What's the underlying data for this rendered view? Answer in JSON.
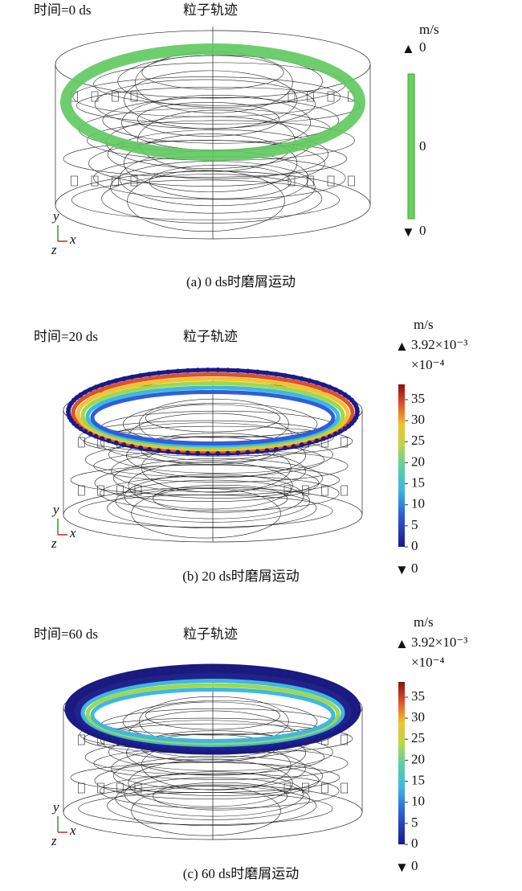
{
  "panels": [
    {
      "time_label": "时间=0 ds",
      "plot_title": "粒子轨迹",
      "unit": "m/s",
      "max_label": "0",
      "mid_label": "0",
      "min_label": "0",
      "axis_y": "y",
      "axis_x": "x",
      "axis_z": "z",
      "caption": "(a) 0 ds时磨屑运动"
    },
    {
      "time_label": "时间=20 ds",
      "plot_title": "粒子轨迹",
      "unit": "m/s",
      "max_label": "3.92×10⁻³",
      "multiplier": "×10⁻⁴",
      "colorbar_ticks": [
        35,
        30,
        25,
        20,
        15,
        10,
        5,
        0
      ],
      "min_label": "0",
      "axis_y": "y",
      "axis_x": "x",
      "axis_z": "z",
      "caption": "(b) 20 ds时磨屑运动"
    },
    {
      "time_label": "时间=60 ds",
      "plot_title": "粒子轨迹",
      "unit": "m/s",
      "max_label": "3.92×10⁻³",
      "multiplier": "×10⁻⁴",
      "colorbar_ticks": [
        35,
        30,
        25,
        20,
        15,
        10,
        5,
        0
      ],
      "min_label": "0",
      "axis_y": "y",
      "axis_x": "x",
      "axis_z": "z",
      "caption": "(c) 60 ds时磨屑运动"
    }
  ]
}
